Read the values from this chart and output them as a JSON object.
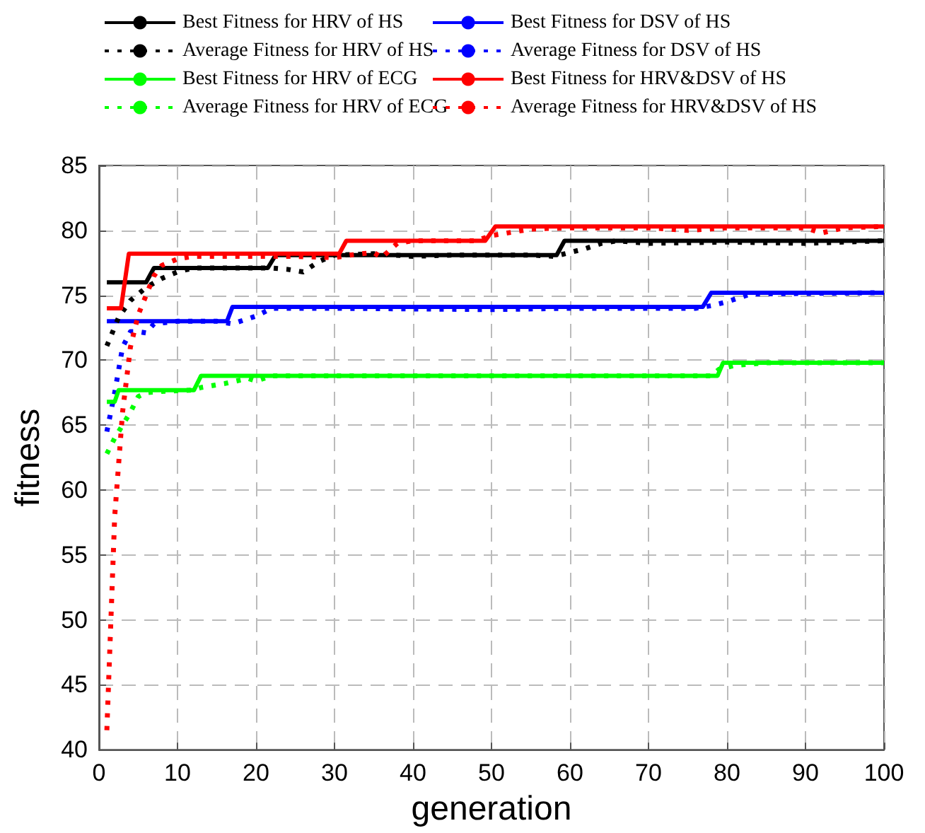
{
  "chart_data": {
    "type": "line",
    "xlabel": "generation",
    "ylabel": "fitness",
    "xlim": [
      0,
      100
    ],
    "xticks": [
      0,
      10,
      20,
      30,
      40,
      50,
      60,
      70,
      80,
      90,
      100
    ],
    "ylim": [
      40,
      85
    ],
    "yticks": [
      40,
      45,
      50,
      55,
      60,
      65,
      70,
      75,
      80,
      85
    ],
    "grid": true,
    "legend": "top",
    "marker": "none",
    "series": [
      {
        "name": "Best Fitness for HRV of HS",
        "color": "#000000",
        "line_style": "solid",
        "x": [
          1,
          6,
          7,
          21.5,
          22.5,
          58.3,
          59.3,
          100
        ],
        "values": [
          76,
          76,
          77.1,
          77.1,
          78.1,
          78.1,
          79.2,
          79.2
        ]
      },
      {
        "name": "Best Fitness for DSV of HS",
        "color": "#0000ff",
        "line_style": "solid",
        "x": [
          1,
          16.3,
          17,
          76.9,
          78,
          100
        ],
        "values": [
          73,
          73,
          74.1,
          74.1,
          75.2,
          75.2
        ]
      },
      {
        "name": "Average Fitness for HRV of HS",
        "color": "#000000",
        "line_style": "dotted",
        "x": [
          1,
          2.5,
          4,
          6,
          8,
          10,
          12,
          15,
          20,
          22,
          24,
          26,
          28,
          30,
          35,
          40,
          45,
          55,
          58,
          60,
          62,
          64,
          66,
          70,
          80,
          90,
          100
        ],
        "values": [
          71.1,
          73.3,
          74.6,
          75.6,
          76.3,
          76.8,
          77.1,
          77.1,
          77.1,
          77.1,
          77,
          76.8,
          77.6,
          78.1,
          78.2,
          78,
          78.1,
          78.1,
          78,
          78.3,
          78.6,
          79,
          79.2,
          79,
          79.1,
          79,
          79.2
        ]
      },
      {
        "name": "Average Fitness for DSV of HS",
        "color": "#0000ff",
        "line_style": "dotted",
        "x": [
          1,
          2,
          3,
          4,
          5,
          6,
          7,
          10,
          15,
          17,
          19,
          20,
          22,
          30,
          50,
          60,
          76,
          78,
          80,
          83,
          100
        ],
        "values": [
          64.5,
          67.5,
          71,
          72.2,
          72.2,
          72.1,
          72.8,
          73,
          73,
          72.8,
          73.2,
          73.4,
          74,
          74,
          73.9,
          74,
          74,
          74.2,
          74.5,
          75.1,
          75.2
        ]
      },
      {
        "name": "Best Fitness for HRV of ECG",
        "color": "#00ff00",
        "line_style": "solid",
        "x": [
          1,
          2,
          2.5,
          12.1,
          13,
          78.8,
          79.5,
          100
        ],
        "values": [
          66.8,
          66.8,
          67.7,
          67.7,
          68.8,
          68.8,
          69.8,
          69.8
        ]
      },
      {
        "name": "Best Fitness for HRV&DSV of HS",
        "color": "#ff0000",
        "line_style": "solid",
        "x": [
          1,
          2.8,
          3.8,
          30.6,
          31.5,
          49.2,
          50.5,
          100
        ],
        "values": [
          74,
          74,
          78.2,
          78.2,
          79.2,
          79.2,
          80.3,
          80.3
        ]
      },
      {
        "name": "Average Fitness for HRV of ECG",
        "color": "#00ff00",
        "line_style": "dotted",
        "x": [
          1,
          2,
          3,
          4,
          5,
          6,
          8,
          12,
          13,
          16,
          19,
          20,
          22,
          78,
          79,
          81,
          85,
          95,
          100
        ],
        "values": [
          62.8,
          64,
          65,
          66,
          67.2,
          67.5,
          67.6,
          67.7,
          67.9,
          68.2,
          68.6,
          68.4,
          68.8,
          68.8,
          69.3,
          69.6,
          69.8,
          69.8,
          69.8
        ]
      },
      {
        "name": "Average Fitness for HRV&DSV of HS",
        "color": "#ff0000",
        "line_style": "dotted",
        "x": [
          1,
          2,
          3,
          4,
          5,
          6,
          7,
          8,
          10,
          12,
          15,
          20,
          25,
          30,
          32,
          35,
          36,
          38,
          40,
          45,
          48,
          50,
          55,
          60,
          70,
          75,
          80,
          90,
          92,
          95,
          100
        ],
        "values": [
          41.5,
          58,
          66,
          71,
          73.5,
          75,
          76.5,
          77.3,
          77.8,
          78,
          78,
          78,
          78,
          77.9,
          78.1,
          78.3,
          77.9,
          79,
          79.2,
          79.2,
          79.2,
          79.6,
          80.1,
          80.2,
          80.2,
          80,
          80.2,
          80.2,
          79.8,
          80.2,
          80.3
        ]
      }
    ]
  }
}
